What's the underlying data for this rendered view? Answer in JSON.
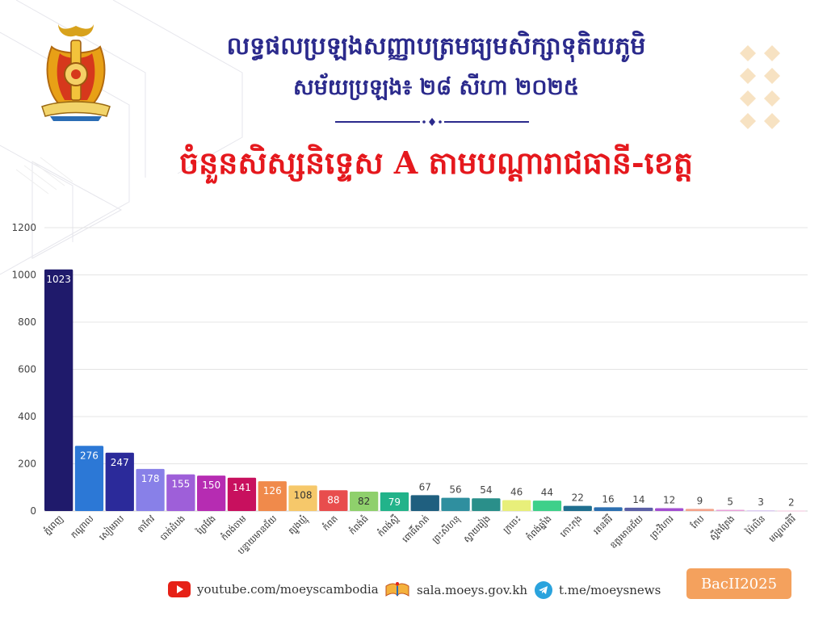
{
  "header": {
    "title_line1": "លទ្ធផលប្រឡងសញ្ញាបត្រមធ្យមសិក្សាទុតិយភូមិ",
    "title_line2": "សម័យប្រឡង៖ ២៨ សីហា ២០២៥",
    "chart_heading": "ចំនួនសិស្សនិទ្ទេស A តាមបណ្តារាជធានី-ខេត្ត"
  },
  "chart_data": {
    "type": "bar",
    "categories": [
      "ភ្នំពេញ",
      "កណ្ដាល",
      "សៀមរាប",
      "តាកែវ",
      "បាត់ដំបង",
      "ព្រៃវែង",
      "កំពង់ចាម",
      "បន្ទាយមានជ័យ",
      "ត្បូងឃ្មុំ",
      "កំពត",
      "កំពង់ធំ",
      "កំពង់ស្ពឺ",
      "ពោធិ៍សាត់",
      "ព្រះសីហនុ",
      "ស្វាយរៀង",
      "ក្រចេះ",
      "កំពង់ឆ្នាំង",
      "កោះកុង",
      "រតនគិរី",
      "ឧត្តរមានជ័យ",
      "ព្រះវិហារ",
      "កែប",
      "ស្ទឹងត្រែង",
      "ប៉ៃលិន",
      "មណ្ឌលគិរី"
    ],
    "values": [
      1023,
      276,
      247,
      178,
      155,
      150,
      141,
      126,
      108,
      88,
      82,
      79,
      67,
      56,
      54,
      46,
      44,
      22,
      16,
      14,
      12,
      9,
      5,
      3,
      2
    ],
    "colors": [
      "#1f1a6b",
      "#2c78d6",
      "#2b2a9a",
      "#8880e8",
      "#9e5fd9",
      "#b62cb2",
      "#c8105e",
      "#f08a4b",
      "#f6c86a",
      "#e84d4d",
      "#8fd06c",
      "#22b38a",
      "#1f5f7f",
      "#2f8f9f",
      "#2a8f8a",
      "#e8ef7a",
      "#3ed08a",
      "#1f6f8f",
      "#2c6fb0",
      "#5b5fa6",
      "#a24ed0",
      "#f3a28a",
      "#e89fd8",
      "#d7c3ef",
      "#f4cde0"
    ],
    "label_inside": [
      true,
      true,
      true,
      true,
      true,
      true,
      true,
      true,
      true,
      true,
      true,
      true,
      false,
      false,
      false,
      false,
      false,
      false,
      false,
      false,
      false,
      false,
      false,
      false,
      false
    ],
    "label_dark": [
      false,
      false,
      false,
      false,
      false,
      false,
      false,
      false,
      true,
      false,
      true,
      false,
      false,
      false,
      false,
      false,
      false,
      false,
      false,
      false,
      false,
      false,
      false,
      false,
      false
    ],
    "yticks": [
      0,
      200,
      400,
      600,
      800,
      1000,
      1200
    ],
    "ylim": [
      0,
      1200
    ],
    "grid": true
  },
  "footer": {
    "youtube": "youtube.com/moeyscambodia",
    "website": "sala.moeys.gov.kh",
    "telegram": "t.me/moeysnews",
    "badge": "BacII2025"
  },
  "colors": {
    "title": "#2b2a8c",
    "heading": "#e5181d",
    "badge": "#f4a15d",
    "youtube": "#e62117",
    "telegram": "#2aa3dd"
  },
  "icons": [
    "emblem-logo",
    "youtube-icon",
    "book-logo-icon",
    "telegram-icon"
  ]
}
